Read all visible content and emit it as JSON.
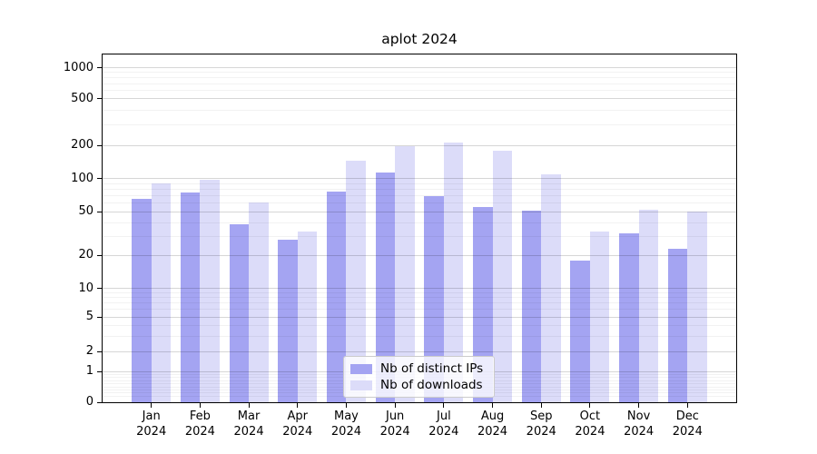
{
  "chart_data": {
    "type": "bar",
    "title": "aplot 2024",
    "categories": [
      "Jan",
      "Feb",
      "Mar",
      "Apr",
      "May",
      "Jun",
      "Jul",
      "Aug",
      "Sep",
      "Oct",
      "Nov",
      "Dec"
    ],
    "category_sublabel": "2024",
    "series": [
      {
        "key": "ips",
        "name": "Nb of distinct IPs",
        "color": "#a4a4f2",
        "values": [
          66,
          75,
          39,
          28,
          77,
          115,
          70,
          56,
          51,
          18,
          32,
          23
        ]
      },
      {
        "key": "downloads",
        "name": "Nb of downloads",
        "color": "#dcdcf9",
        "values": [
          91,
          98,
          61,
          33,
          146,
          198,
          212,
          180,
          110,
          33,
          52,
          50
        ]
      }
    ],
    "y_scale": "symlog",
    "y_major_ticks": [
      0,
      1,
      2,
      5,
      10,
      20,
      50,
      100,
      200,
      500,
      1000
    ],
    "y_minor_ticks": [
      0.2,
      0.3,
      0.4,
      0.5,
      0.6,
      0.7,
      0.8,
      0.9,
      3,
      4,
      6,
      7,
      8,
      9,
      30,
      40,
      60,
      70,
      80,
      90,
      300,
      400,
      600,
      700,
      800,
      900
    ],
    "ylim": [
      0,
      1300
    ],
    "grid": true,
    "legend_position": "lower center",
    "colors": {
      "axis": "#000000",
      "grid_major": "#d9d9d9",
      "grid_minor": "#f2f2f2",
      "background": "#ffffff"
    }
  }
}
